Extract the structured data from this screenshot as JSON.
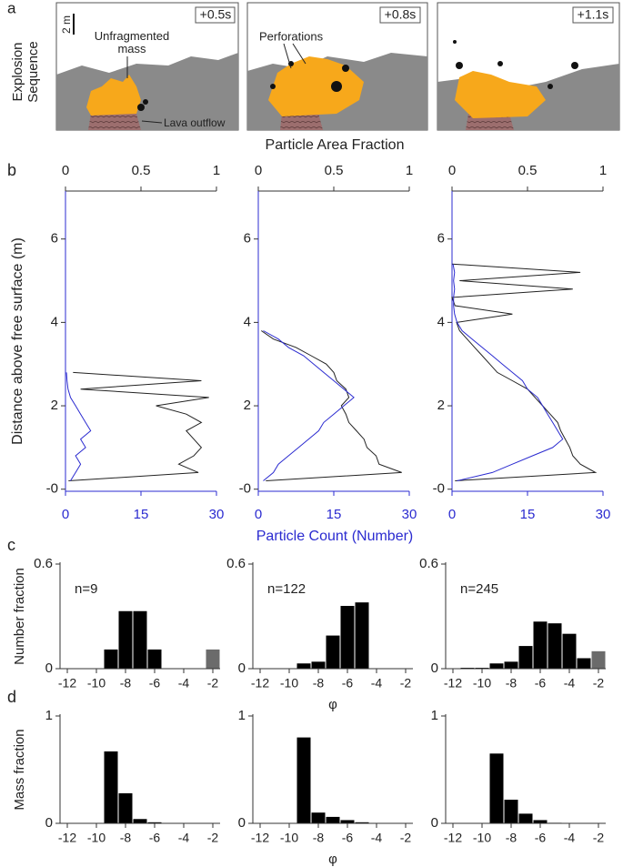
{
  "panel_a": {
    "label": "a",
    "row_label": "Explosion Sequence",
    "scale_bar": "2 m",
    "frames": [
      {
        "time": "+0.5s",
        "labels": [
          "Unfragmented mass",
          "Lava outflow"
        ]
      },
      {
        "time": "+0.8s",
        "labels": [
          "Perforations"
        ]
      },
      {
        "time": "+1.1s"
      }
    ]
  },
  "chart_data": [
    {
      "type": "line",
      "panel_label": "b",
      "ylabel": "Distance above free surface (m)",
      "y": [
        0.2,
        0.4,
        0.6,
        0.8,
        1,
        1.2,
        1.4,
        1.6,
        1.8,
        2,
        2.2,
        2.4,
        2.6,
        2.8
      ],
      "ylim": [
        -0.05,
        7.15
      ],
      "yticks": [
        {
          "value": 0,
          "label": "-0"
        },
        2,
        4,
        6
      ],
      "xlim": [
        0,
        1
      ],
      "xticks": [
        0,
        0.5,
        1
      ],
      "x2lim": [
        0,
        30
      ],
      "x2ticks": [
        0,
        15,
        30
      ],
      "series": [
        {
          "color": "#222222",
          "values": [
            0.02,
            0.88,
            0.75,
            0.85,
            0.9,
            0.85,
            0.8,
            0.9,
            0.8,
            0.6,
            0.95,
            0.1,
            0.9,
            0.05
          ]
        },
        {
          "color": "#2b2bd0",
          "axis": "x2",
          "values": [
            1,
            2,
            3,
            2,
            4,
            3,
            5,
            4,
            3,
            2,
            1,
            0.5,
            0.3,
            0.2
          ]
        }
      ]
    },
    {
      "type": "line",
      "xlabel": "Particle Area Fraction",
      "x2label": "Particle Count (Number)",
      "y": [
        0.2,
        0.4,
        0.6,
        0.8,
        1,
        1.2,
        1.4,
        1.6,
        1.8,
        2,
        2.2,
        2.4,
        2.6,
        2.8,
        3,
        3.2,
        3.4,
        3.6,
        3.8
      ],
      "ylim": [
        -0.05,
        7.15
      ],
      "yticks": [
        {
          "value": 0,
          "label": "-0"
        },
        2,
        4,
        6
      ],
      "xlim": [
        0,
        1
      ],
      "xticks": [
        0,
        0.5,
        1
      ],
      "x2lim": [
        0,
        30
      ],
      "x2ticks": [
        0,
        15,
        30
      ],
      "series": [
        {
          "color": "#222222",
          "values": [
            0.05,
            0.95,
            0.8,
            0.78,
            0.72,
            0.7,
            0.65,
            0.6,
            0.58,
            0.55,
            0.6,
            0.58,
            0.52,
            0.5,
            0.45,
            0.35,
            0.25,
            0.1,
            0.02
          ]
        },
        {
          "color": "#2b2bd0",
          "axis": "x2",
          "values": [
            1,
            3,
            4,
            6,
            8,
            10,
            12,
            13,
            15,
            17,
            19,
            17,
            15,
            13,
            11,
            9,
            6,
            4,
            1
          ]
        }
      ]
    },
    {
      "type": "line",
      "y": [
        0.2,
        0.4,
        0.6,
        0.8,
        1,
        1.2,
        1.4,
        1.6,
        1.8,
        2,
        2.2,
        2.4,
        2.6,
        2.8,
        3,
        3.2,
        3.4,
        3.6,
        3.8,
        4,
        4.2,
        4.4,
        4.6,
        4.8,
        5,
        5.2,
        5.4
      ],
      "ylim": [
        -0.05,
        7.15
      ],
      "yticks": [
        {
          "value": 0,
          "label": "-0"
        },
        2,
        4,
        6
      ],
      "xlim": [
        0,
        1
      ],
      "xticks": [
        0,
        0.5,
        1
      ],
      "x2lim": [
        0,
        30
      ],
      "x2ticks": [
        0,
        15,
        30
      ],
      "series": [
        {
          "color": "#222222",
          "values": [
            0.02,
            0.95,
            0.85,
            0.8,
            0.78,
            0.75,
            0.72,
            0.7,
            0.65,
            0.6,
            0.55,
            0.5,
            0.4,
            0.3,
            0.25,
            0.2,
            0.15,
            0.1,
            0.05,
            0.03,
            0.4,
            0.02,
            0,
            0.8,
            0.05,
            0.85,
            0
          ]
        },
        {
          "color": "#2b2bd0",
          "axis": "x2",
          "values": [
            1,
            8,
            12,
            16,
            20,
            22,
            21,
            20,
            19,
            18,
            17,
            15,
            14,
            12,
            10,
            8,
            6,
            4,
            2,
            1,
            0.5,
            0.3,
            0.3,
            0.5,
            0.3,
            0.5,
            0.2
          ]
        }
      ]
    },
    {
      "type": "histogram",
      "panel_label": "c",
      "ylabel": "Number fraction",
      "annotation": "n=9",
      "bins": [
        -12.5,
        -11.5,
        -10.5,
        -9.5,
        -8.5,
        -7.5,
        -6.5,
        -5.5,
        -4.5,
        -3.5,
        -2.5,
        -1.5
      ],
      "values": [
        0,
        0,
        0,
        0.11,
        0.33,
        0.33,
        0.11,
        0,
        0,
        0,
        0.11
      ],
      "colors": [
        "#000000",
        "#000000",
        "#000000",
        "#000000",
        "#000000",
        "#000000",
        "#000000",
        "#000000",
        "#000000",
        "#000000",
        "#6b6b6b"
      ],
      "xlim": [
        -12.5,
        -1.5
      ],
      "xticks": [
        -12,
        -10,
        -8,
        -6,
        -4,
        -2
      ],
      "ylim": [
        0,
        0.6
      ],
      "yticks": [
        0,
        0.6
      ]
    },
    {
      "type": "histogram",
      "xlabel": "φ",
      "annotation": "n=122",
      "bins": [
        -12.5,
        -11.5,
        -10.5,
        -9.5,
        -8.5,
        -7.5,
        -6.5,
        -5.5,
        -4.5,
        -3.5,
        -2.5,
        -1.5
      ],
      "values": [
        0,
        0,
        0,
        0.03,
        0.04,
        0.19,
        0.36,
        0.38,
        0,
        0,
        0
      ],
      "color": "#000000",
      "xlim": [
        -12.5,
        -1.5
      ],
      "xticks": [
        -12,
        -10,
        -8,
        -6,
        -4,
        -2
      ],
      "ylim": [
        0,
        0.6
      ],
      "yticks": [
        0,
        0.6
      ]
    },
    {
      "type": "histogram",
      "annotation": "n=245",
      "bins": [
        -12.5,
        -11.5,
        -10.5,
        -9.5,
        -8.5,
        -7.5,
        -6.5,
        -5.5,
        -4.5,
        -3.5,
        -2.5,
        -1.5
      ],
      "values": [
        0,
        0.005,
        0.005,
        0.03,
        0.04,
        0.13,
        0.27,
        0.26,
        0.2,
        0.06,
        0.1
      ],
      "colors": [
        "#000000",
        "#000000",
        "#000000",
        "#000000",
        "#000000",
        "#000000",
        "#000000",
        "#000000",
        "#000000",
        "#000000",
        "#6b6b6b"
      ],
      "xlim": [
        -12.5,
        -1.5
      ],
      "xticks": [
        -12,
        -10,
        -8,
        -6,
        -4,
        -2
      ],
      "ylim": [
        0,
        0.6
      ],
      "yticks": [
        0,
        0.6
      ]
    },
    {
      "type": "histogram",
      "panel_label": "d",
      "ylabel": "Mass fraction",
      "bins": [
        -12.5,
        -11.5,
        -10.5,
        -9.5,
        -8.5,
        -7.5,
        -6.5,
        -5.5,
        -4.5,
        -3.5,
        -2.5,
        -1.5
      ],
      "values": [
        0,
        0,
        0,
        0.67,
        0.28,
        0.04,
        0.01,
        0,
        0,
        0,
        0
      ],
      "color": "#000000",
      "xlim": [
        -12.5,
        -1.5
      ],
      "xticks": [
        -12,
        -10,
        -8,
        -6,
        -4,
        -2
      ],
      "ylim": [
        0,
        1
      ],
      "yticks": [
        0,
        1
      ]
    },
    {
      "type": "histogram",
      "xlabel": "φ",
      "bins": [
        -12.5,
        -11.5,
        -10.5,
        -9.5,
        -8.5,
        -7.5,
        -6.5,
        -5.5,
        -4.5,
        -3.5,
        -2.5,
        -1.5
      ],
      "values": [
        0,
        0,
        0,
        0.8,
        0.1,
        0.06,
        0.03,
        0.01,
        0,
        0,
        0
      ],
      "color": "#000000",
      "xlim": [
        -12.5,
        -1.5
      ],
      "xticks": [
        -12,
        -10,
        -8,
        -6,
        -4,
        -2
      ],
      "ylim": [
        0,
        1
      ],
      "yticks": [
        0,
        1
      ]
    },
    {
      "type": "histogram",
      "bins": [
        -12.5,
        -11.5,
        -10.5,
        -9.5,
        -8.5,
        -7.5,
        -6.5,
        -5.5,
        -4.5,
        -3.5,
        -2.5,
        -1.5
      ],
      "values": [
        0,
        0,
        0,
        0.65,
        0.22,
        0.09,
        0.03,
        0.005,
        0,
        0,
        0
      ],
      "color": "#000000",
      "xlim": [
        -12.5,
        -1.5
      ],
      "xticks": [
        -12,
        -10,
        -8,
        -6,
        -4,
        -2
      ],
      "ylim": [
        0,
        1
      ],
      "yticks": [
        0,
        1
      ]
    }
  ]
}
